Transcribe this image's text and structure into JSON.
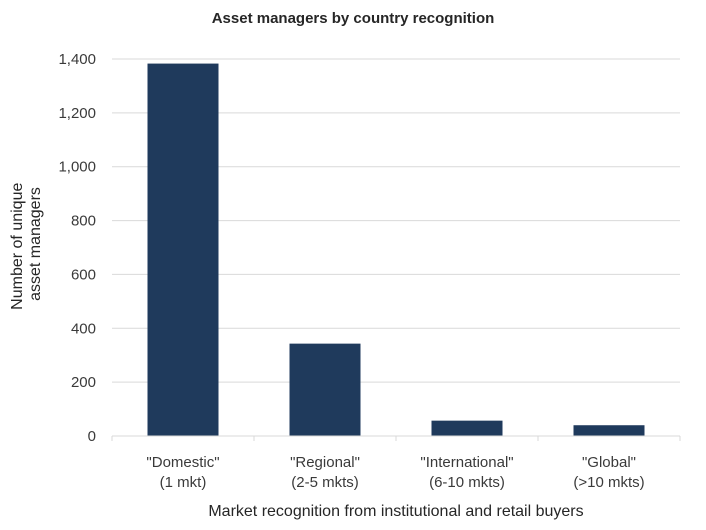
{
  "chart_data": {
    "type": "bar",
    "title": "Asset managers by country recognition",
    "xlabel": "Market recognition from institutional and retail buyers",
    "ylabel_lines": [
      "Number of unique",
      "asset managers"
    ],
    "categories": [
      [
        "\"Domestic\"",
        "(1 mkt)"
      ],
      [
        "\"Regional\"",
        "(2-5 mkts)"
      ],
      [
        "\"International\"",
        "(6-10 mkts)"
      ],
      [
        "\"Global\"",
        "(>10 mkts)"
      ]
    ],
    "values": [
      1383,
      343,
      57,
      40
    ],
    "ylim": [
      0,
      1400
    ],
    "yticks": [
      0,
      200,
      400,
      600,
      800,
      1000,
      1200,
      1400
    ],
    "ytick_labels": [
      "0",
      "200",
      "400",
      "600",
      "800",
      "1,000",
      "1,200",
      "1,400"
    ],
    "grid": true,
    "bar_color": "#1f3a5c",
    "grid_color": "#d9d9d9"
  }
}
